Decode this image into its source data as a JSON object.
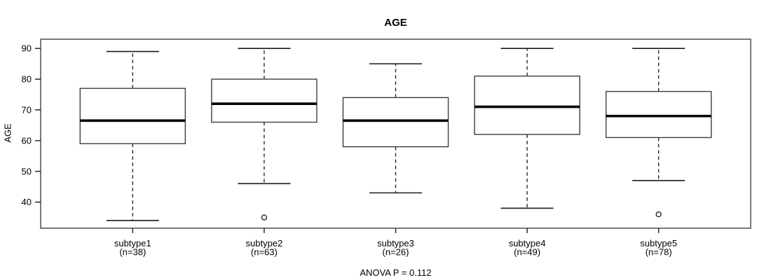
{
  "chart_data": {
    "type": "boxplot",
    "title": "AGE",
    "ylabel": "AGE",
    "annotation": "ANOVA P = 0.112",
    "ylim": [
      31.5,
      93
    ],
    "yticks": [
      40,
      50,
      60,
      70,
      80,
      90
    ],
    "grid": false,
    "legend": "none",
    "categories": [
      {
        "label": "subtype1",
        "sublabel": "(n=38)",
        "n": 38,
        "low": 34,
        "q1": 59,
        "median": 66.5,
        "q3": 77,
        "high": 89,
        "outliers": []
      },
      {
        "label": "subtype2",
        "sublabel": "(n=63)",
        "n": 63,
        "low": 46,
        "q1": 66,
        "median": 72,
        "q3": 80,
        "high": 90,
        "outliers": [
          35
        ]
      },
      {
        "label": "subtype3",
        "sublabel": "(n=26)",
        "n": 26,
        "low": 43,
        "q1": 58,
        "median": 66.5,
        "q3": 74,
        "high": 85,
        "outliers": []
      },
      {
        "label": "subtype4",
        "sublabel": "(n=49)",
        "n": 49,
        "low": 38,
        "q1": 62,
        "median": 71,
        "q3": 81,
        "high": 90,
        "outliers": []
      },
      {
        "label": "subtype5",
        "sublabel": "(n=78)",
        "n": 78,
        "low": 47,
        "q1": 61,
        "median": 68,
        "q3": 76,
        "high": 90,
        "outliers": [
          36
        ]
      }
    ],
    "colors": {
      "background": "#ffffff",
      "frame_stroke": "#595959",
      "box_stroke": "#3d3d3d",
      "box_fill": "#ffffff",
      "median_stroke": "#000000",
      "whisker_stroke": "#1a1a1a",
      "outlier_stroke": "#1a1a1a",
      "text": "#000000"
    }
  }
}
